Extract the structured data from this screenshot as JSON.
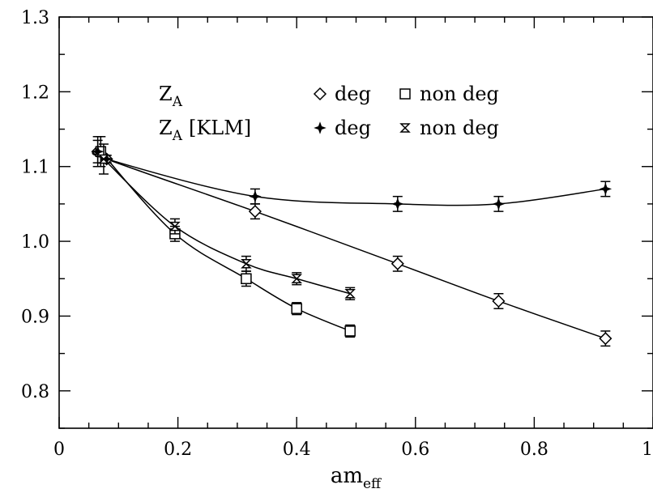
{
  "chart_data": {
    "type": "scatter",
    "title": "",
    "xlabel_main": "am",
    "xlabel_sub": "eff",
    "ylabel": "",
    "xlim": [
      0,
      1
    ],
    "ylim": [
      0.75,
      1.3
    ],
    "x_ticks": [
      {
        "value": 0,
        "label": "0"
      },
      {
        "value": 0.2,
        "label": "0.2"
      },
      {
        "value": 0.4,
        "label": "0.4"
      },
      {
        "value": 0.6,
        "label": "0.6"
      },
      {
        "value": 0.8,
        "label": "0.8"
      },
      {
        "value": 1,
        "label": "1"
      }
    ],
    "y_ticks": [
      {
        "value": 0.8,
        "label": "0.8"
      },
      {
        "value": 0.9,
        "label": "0.9"
      },
      {
        "value": 1.0,
        "label": "1.0"
      },
      {
        "value": 1.1,
        "label": "1.1"
      },
      {
        "value": 1.2,
        "label": "1.2"
      },
      {
        "value": 1.3,
        "label": "1.3"
      }
    ],
    "grid": false,
    "legend": {
      "placement": "top-center",
      "rows": [
        {
          "group_main": "Z",
          "group_sub": "A",
          "group_extra": "",
          "entries": [
            {
              "marker": "diamond",
              "label": "deg"
            },
            {
              "marker": "square",
              "label": "non deg"
            }
          ]
        },
        {
          "group_main": "Z",
          "group_sub": "A",
          "group_extra": "[KLM]",
          "entries": [
            {
              "marker": "star4",
              "label": "deg"
            },
            {
              "marker": "bowtie",
              "label": "non deg"
            }
          ]
        }
      ]
    },
    "series": [
      {
        "marker": "diamond",
        "points": [
          {
            "x": 0.065,
            "y": 1.12,
            "err": 0.015
          },
          {
            "x": 0.08,
            "y": 1.11,
            "err": 0.005
          },
          {
            "x": 0.33,
            "y": 1.04,
            "err": 0.01
          },
          {
            "x": 0.57,
            "y": 0.97,
            "err": 0.01
          },
          {
            "x": 0.74,
            "y": 0.92,
            "err": 0.01
          },
          {
            "x": 0.92,
            "y": 0.87,
            "err": 0.01
          }
        ]
      },
      {
        "marker": "square",
        "points": [
          {
            "x": 0.07,
            "y": 1.12,
            "err": 0.02
          },
          {
            "x": 0.195,
            "y": 1.01,
            "err": 0.01
          },
          {
            "x": 0.315,
            "y": 0.95,
            "err": 0.01
          },
          {
            "x": 0.4,
            "y": 0.91,
            "err": 0.008
          },
          {
            "x": 0.49,
            "y": 0.88,
            "err": 0.008
          }
        ]
      },
      {
        "marker": "star4",
        "points": [
          {
            "x": 0.065,
            "y": 1.12,
            "err": 0.02
          },
          {
            "x": 0.08,
            "y": 1.11,
            "err": 0.005
          },
          {
            "x": 0.33,
            "y": 1.06,
            "err": 0.01
          },
          {
            "x": 0.57,
            "y": 1.05,
            "err": 0.01
          },
          {
            "x": 0.74,
            "y": 1.05,
            "err": 0.01
          },
          {
            "x": 0.92,
            "y": 1.07,
            "err": 0.01
          }
        ]
      },
      {
        "marker": "bowtie",
        "points": [
          {
            "x": 0.075,
            "y": 1.11,
            "err": 0.02
          },
          {
            "x": 0.195,
            "y": 1.02,
            "err": 0.01
          },
          {
            "x": 0.315,
            "y": 0.97,
            "err": 0.01
          },
          {
            "x": 0.4,
            "y": 0.95,
            "err": 0.008
          },
          {
            "x": 0.49,
            "y": 0.93,
            "err": 0.008
          }
        ]
      }
    ]
  }
}
